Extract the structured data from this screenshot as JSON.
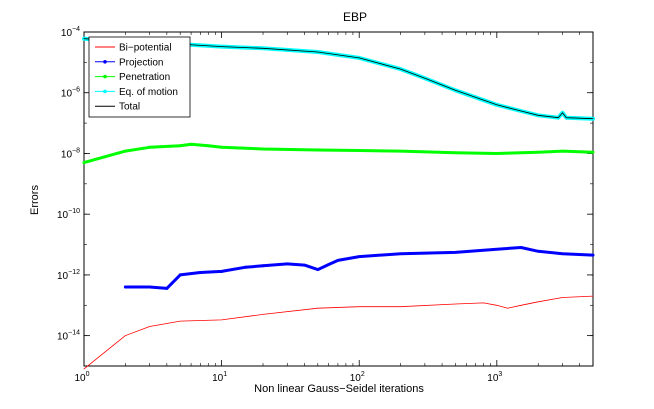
{
  "chart_data": {
    "type": "line",
    "title": "EBP",
    "xlabel": "Non linear Gauss−Seidel iterations",
    "ylabel": "Errors",
    "xscale": "log",
    "yscale": "log",
    "xlim": [
      1,
      5000
    ],
    "ylim": [
      1e-15,
      0.0001
    ],
    "x_ticks": [
      {
        "value": 1,
        "base": "10",
        "exp": "0"
      },
      {
        "value": 10,
        "base": "10",
        "exp": "1"
      },
      {
        "value": 100,
        "base": "10",
        "exp": "2"
      },
      {
        "value": 1000,
        "base": "10",
        "exp": "3"
      }
    ],
    "y_ticks": [
      {
        "value": 1e-14,
        "base": "10",
        "exp": "−14"
      },
      {
        "value": 1e-12,
        "base": "10",
        "exp": "−12"
      },
      {
        "value": 1e-10,
        "base": "10",
        "exp": "−10"
      },
      {
        "value": 1e-08,
        "base": "10",
        "exp": "−8"
      },
      {
        "value": 1e-06,
        "base": "10",
        "exp": "−6"
      },
      {
        "value": 0.0001,
        "base": "10",
        "exp": "−4"
      }
    ],
    "grid": false,
    "legend_position": "top-left",
    "series": [
      {
        "name": "Bi−potential",
        "color": "#ff0000",
        "marker": "none",
        "thick": false,
        "x": [
          1,
          2,
          3,
          5,
          10,
          20,
          50,
          100,
          200,
          500,
          800,
          1000,
          1200,
          1500,
          2000,
          3000,
          5000
        ],
        "y": [
          8e-16,
          1e-14,
          2e-14,
          3e-14,
          3.3e-14,
          5e-14,
          8e-14,
          9e-14,
          9e-14,
          1.1e-13,
          1.2e-13,
          1e-13,
          8e-14,
          1e-13,
          1.3e-13,
          1.8e-13,
          2e-13
        ]
      },
      {
        "name": "Projection",
        "color": "#0000ff",
        "marker": "dot",
        "thick": true,
        "x": [
          2,
          3,
          4,
          5,
          7,
          10,
          15,
          20,
          30,
          40,
          50,
          60,
          70,
          100,
          200,
          500,
          1000,
          1500,
          2000,
          3000,
          5000
        ],
        "y": [
          4e-13,
          4e-13,
          3.6e-13,
          1e-12,
          1.2e-12,
          1.3e-12,
          1.8e-12,
          2e-12,
          2.3e-12,
          2.1e-12,
          1.5e-12,
          2.2e-12,
          3e-12,
          4e-12,
          5e-12,
          5.5e-12,
          7e-12,
          8e-12,
          6e-12,
          5e-12,
          4.5e-12
        ]
      },
      {
        "name": "Penetration",
        "color": "#00ff00",
        "marker": "dot",
        "thick": true,
        "x": [
          1,
          2,
          3,
          5,
          6,
          8,
          10,
          20,
          50,
          100,
          200,
          500,
          1000,
          2000,
          3000,
          5000
        ],
        "y": [
          5e-09,
          1.2e-08,
          1.6e-08,
          1.8e-08,
          2e-08,
          1.8e-08,
          1.6e-08,
          1.4e-08,
          1.3e-08,
          1.25e-08,
          1.2e-08,
          1.05e-08,
          1e-08,
          1.1e-08,
          1.2e-08,
          1.1e-08
        ]
      },
      {
        "name": "Eq. of motion",
        "color": "#00ffff",
        "marker": "dot",
        "thick": true,
        "x": [
          1,
          2,
          5,
          10,
          20,
          50,
          100,
          200,
          300,
          500,
          1000,
          1500,
          2000,
          2800,
          3000,
          3200,
          4000,
          5000
        ],
        "y": [
          6e-05,
          5e-05,
          4e-05,
          3.3e-05,
          2.9e-05,
          2.2e-05,
          1.4e-05,
          6e-06,
          3e-06,
          1.2e-06,
          4e-07,
          2.5e-07,
          1.8e-07,
          1.5e-07,
          2.2e-07,
          1.5e-07,
          1.45e-07,
          1.4e-07
        ]
      },
      {
        "name": "Total",
        "color": "#000000",
        "marker": "none",
        "thick": false,
        "x": [
          1,
          2,
          5,
          10,
          20,
          50,
          100,
          200,
          300,
          500,
          1000,
          1500,
          2000,
          2800,
          3000,
          3200,
          4000,
          5000
        ],
        "y": [
          6e-05,
          5e-05,
          4e-05,
          3.3e-05,
          2.9e-05,
          2.2e-05,
          1.4e-05,
          6e-06,
          3e-06,
          1.2e-06,
          4e-07,
          2.5e-07,
          1.8e-07,
          1.5e-07,
          2.2e-07,
          1.5e-07,
          1.45e-07,
          1.4e-07
        ]
      }
    ]
  }
}
